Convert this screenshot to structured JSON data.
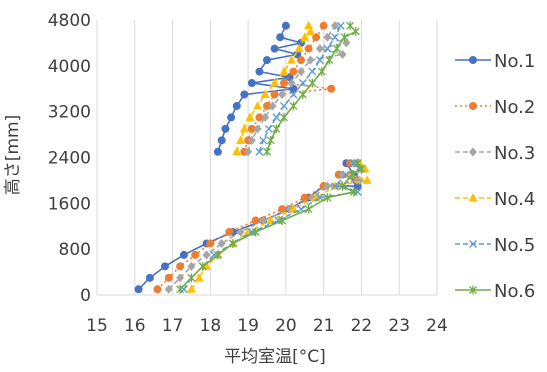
{
  "chart_data": {
    "type": "scatter",
    "title": "",
    "xlabel": "平均室温[°C]",
    "ylabel": "高さ[mm]",
    "xlim": [
      15,
      24
    ],
    "ylim": [
      0,
      4800
    ],
    "x_ticks": [
      "15",
      "16",
      "17",
      "18",
      "19",
      "20",
      "21",
      "22",
      "23",
      "24"
    ],
    "y_ticks": [
      "0",
      "800",
      "1600",
      "2400",
      "3200",
      "4000",
      "4800"
    ],
    "grid": "vertical",
    "legend_position": "right",
    "series": [
      {
        "name": "No.1",
        "color": "#4472C4",
        "marker": "circle",
        "line": "solid",
        "segments": [
          {
            "x": [
              16.1,
              16.4,
              16.8,
              17.3,
              17.9,
              18.6,
              19.4,
              20.1,
              20.6,
              21.0,
              21.4,
              21.6,
              21.8,
              21.85,
              21.9,
              21.9
            ],
            "y": [
              100,
              300,
              500,
              700,
              900,
              1100,
              1300,
              1500,
              1700,
              1900,
              2100,
              2300,
              2100,
              2000,
              1900,
              2300
            ]
          },
          {
            "x": [
              18.2,
              18.3,
              18.4,
              18.55,
              18.7,
              18.9,
              19.1,
              19.3,
              19.5,
              19.7,
              19.85,
              20.0,
              20.1,
              20.2,
              20.3,
              20.4
            ],
            "y": [
              2500,
              2700,
              2900,
              3100,
              3300,
              3500,
              3700,
              3900,
              4100,
              4300,
              4500,
              4700,
              3800,
              3600,
              4200,
              4400
            ]
          }
        ]
      },
      {
        "name": "No.2",
        "color": "#ED7D31",
        "marker": "circle",
        "line": "dotted",
        "segments": [
          {
            "x": [
              16.6,
              16.9,
              17.2,
              17.6,
              18.0,
              18.5,
              19.2,
              19.9,
              20.5,
              21.0,
              21.4,
              21.7,
              21.9,
              22.0
            ],
            "y": [
              100,
              300,
              500,
              700,
              900,
              1100,
              1300,
              1500,
              1700,
              1900,
              2100,
              2300,
              2000,
              2200
            ]
          },
          {
            "x": [
              18.9,
              19.0,
              19.1,
              19.3,
              19.5,
              19.7,
              19.95,
              20.2,
              20.4,
              20.6,
              20.8,
              21.0,
              21.2
            ],
            "y": [
              2500,
              2700,
              2900,
              3100,
              3300,
              3500,
              3700,
              3900,
              4100,
              4300,
              4500,
              4700,
              3600
            ]
          }
        ]
      },
      {
        "name": "No.3",
        "color": "#A5A5A5",
        "marker": "diamond",
        "line": "dashed",
        "segments": [
          {
            "x": [
              16.9,
              17.2,
              17.5,
              17.9,
              18.3,
              18.8,
              19.4,
              20.1,
              20.7,
              21.1,
              21.5,
              21.8,
              21.95,
              22.0
            ],
            "y": [
              100,
              300,
              500,
              700,
              900,
              1100,
              1300,
              1500,
              1700,
              1900,
              2100,
              2300,
              2000,
              2200
            ]
          },
          {
            "x": [
              19.0,
              19.1,
              19.25,
              19.45,
              19.65,
              19.9,
              20.15,
              20.4,
              20.65,
              20.9,
              21.1,
              21.3,
              21.5,
              21.6
            ],
            "y": [
              2500,
              2700,
              2900,
              3100,
              3300,
              3500,
              3700,
              3900,
              4100,
              4300,
              4500,
              4700,
              4200,
              4400
            ]
          }
        ]
      },
      {
        "name": "No.4",
        "color": "#FFC000",
        "marker": "triangle",
        "line": "dashed",
        "segments": [
          {
            "x": [
              17.5,
              17.7,
              17.9,
              18.2,
              18.6,
              19.0,
              19.6,
              20.2,
              20.8,
              21.3,
              21.7,
              21.95,
              22.1,
              22.15
            ],
            "y": [
              100,
              300,
              500,
              700,
              900,
              1100,
              1300,
              1500,
              1700,
              1900,
              2100,
              2300,
              2200,
              2000
            ]
          },
          {
            "x": [
              18.7,
              18.8,
              18.9,
              19.05,
              19.25,
              19.45,
              19.7,
              19.95,
              20.15,
              20.35,
              20.5,
              20.6,
              20.65
            ],
            "y": [
              2500,
              2700,
              2900,
              3100,
              3300,
              3500,
              3700,
              3900,
              4100,
              4300,
              4500,
              4700,
              4600
            ]
          }
        ]
      },
      {
        "name": "No.5",
        "color": "#5B9BD5",
        "marker": "x",
        "line": "dashed",
        "segments": [
          {
            "x": [
              17.3,
              17.5,
              17.8,
              18.1,
              18.6,
              19.1,
              19.8,
              20.4,
              20.9,
              21.3,
              21.6,
              21.8,
              21.95,
              21.9
            ],
            "y": [
              100,
              300,
              500,
              700,
              900,
              1100,
              1300,
              1500,
              1700,
              1900,
              2100,
              2300,
              2200,
              1800
            ]
          },
          {
            "x": [
              19.3,
              19.4,
              19.55,
              19.75,
              19.95,
              20.2,
              20.45,
              20.7,
              20.9,
              21.1,
              21.3,
              21.45
            ],
            "y": [
              2500,
              2700,
              2900,
              3100,
              3300,
              3500,
              3700,
              3900,
              4100,
              4300,
              4500,
              4700
            ]
          }
        ]
      },
      {
        "name": "No.6",
        "color": "#70AD47",
        "marker": "star",
        "line": "solid",
        "segments": [
          {
            "x": [
              17.2,
              17.5,
              17.8,
              18.2,
              18.6,
              19.2,
              19.9,
              20.6,
              21.1,
              21.5,
              21.75,
              21.9,
              22.0,
              21.8
            ],
            "y": [
              100,
              300,
              500,
              700,
              900,
              1100,
              1300,
              1500,
              1700,
              1900,
              2100,
              2300,
              2200,
              1800
            ]
          },
          {
            "x": [
              19.5,
              19.6,
              19.75,
              19.95,
              20.2,
              20.45,
              20.7,
              20.95,
              21.15,
              21.35,
              21.55,
              21.7,
              21.85
            ],
            "y": [
              2500,
              2700,
              2900,
              3100,
              3300,
              3500,
              3700,
              3900,
              4100,
              4300,
              4500,
              4700,
              4600
            ]
          }
        ]
      }
    ]
  }
}
